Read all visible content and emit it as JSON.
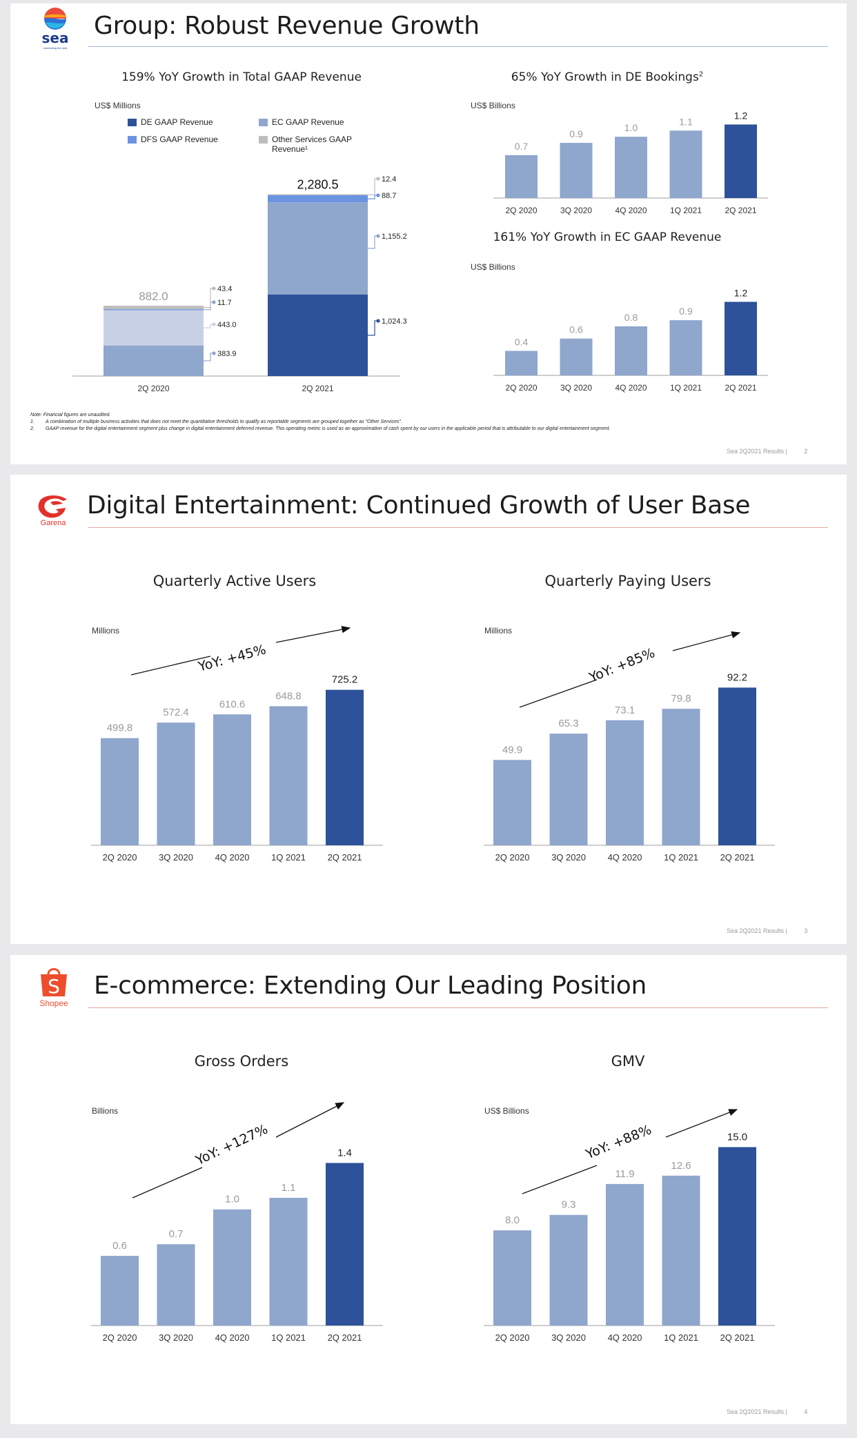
{
  "colors": {
    "dark": "#2d5299",
    "light": "#8fa6cd",
    "pale": "#c8d0e6",
    "gray": "#bdbdbd",
    "dfs": "#6a93e0",
    "rule1": "#9fb7d8",
    "rule23": "#e3a79f",
    "garena": "#e2312b",
    "shopee": "#ee4d2d",
    "seaNavy": "#1c3a8a"
  },
  "slides": [
    {
      "title": "Group: Robust Revenue Growth",
      "logo": {
        "icon": "sea-logo",
        "text": "sea",
        "tagline": "connecting the dots"
      },
      "page": {
        "source": "Sea 2Q2021 Results |",
        "number": "2"
      },
      "notes": [
        "Note: Financial figures are unaudited.",
        "1.",
        "A combination of multiple business activities that does not meet the quantitative thresholds to qualify as reportable segments are grouped together as \"Other Services\".",
        "2.",
        "GAAP revenue for the digital entertainment segment plus change in digital entertainment deferred revenue. This operating metric is used as an approximation of cash spent by our users in the applicable period that is attributable to our digital entertainment segment."
      ],
      "stack": {
        "subtitle": "159% YoY Growth in Total GAAP Revenue",
        "unit": "US$ Millions",
        "legend": [
          {
            "label": "DE GAAP Revenue",
            "key": "dark"
          },
          {
            "label": "EC GAAP Revenue",
            "key": "light"
          },
          {
            "label": "DFS GAAP Revenue",
            "key": "dfs"
          },
          {
            "label": "Other Services GAAP Revenue¹",
            "key": "gray"
          }
        ]
      },
      "bookings": {
        "subtitle": "65% YoY Growth in DE Bookings",
        "sup": "2",
        "unit": "US$ Billions"
      },
      "ecrev": {
        "subtitle": "161% YoY Growth in EC GAAP Revenue",
        "unit": "US$ Billions"
      }
    },
    {
      "title": "Digital Entertainment: Continued Growth of User Base",
      "logo": {
        "icon": "garena-logo",
        "text": "Garena"
      },
      "page": {
        "source": "Sea 2Q2021 Results |",
        "number": "3"
      },
      "left": {
        "subtitle": "Quarterly Active Users",
        "unit": "Millions",
        "yoy": "YoY: +45%"
      },
      "right": {
        "subtitle": "Quarterly Paying Users",
        "unit": "Millions",
        "yoy": "YoY: +85%"
      }
    },
    {
      "title": "E-commerce: Extending Our Leading Position",
      "logo": {
        "icon": "shopee-bag-logo",
        "text": "Shopee",
        "letter": "S"
      },
      "page": {
        "source": "Sea 2Q2021 Results |",
        "number": "4"
      },
      "left": {
        "subtitle": "Gross Orders",
        "unit": "Billions",
        "yoy": "YoY: +127%"
      },
      "right": {
        "subtitle": "GMV",
        "unit": "US$ Billions",
        "yoy": "YoY: +88%"
      }
    }
  ],
  "chart_data": [
    {
      "type": "bar",
      "stacked": true,
      "id": "total-gaap-revenue",
      "categories": [
        "2Q 2020",
        "2Q 2021"
      ],
      "totals": [
        "882.0",
        "2,280.5"
      ],
      "series": [
        {
          "name": "DE GAAP Revenue",
          "values": [
            383.9,
            1024.3
          ],
          "labels": [
            "383.9",
            "1,024.3"
          ]
        },
        {
          "name": "EC GAAP Revenue",
          "values": [
            443.0,
            1155.2
          ],
          "labels": [
            "443.0",
            "1,155.2"
          ]
        },
        {
          "name": "DFS GAAP Revenue",
          "values": [
            11.7,
            88.7
          ],
          "labels": [
            "11.7",
            "88.7"
          ]
        },
        {
          "name": "Other Services GAAP Revenue¹",
          "values": [
            43.4,
            12.4
          ],
          "labels": [
            "43.4",
            "12.4"
          ]
        }
      ],
      "ylim": [
        0,
        2450
      ]
    },
    {
      "type": "bar",
      "id": "de-bookings",
      "categories": [
        "2Q 2020",
        "3Q 2020",
        "4Q 2020",
        "1Q 2021",
        "2Q 2021"
      ],
      "values": [
        0.7,
        0.9,
        1.0,
        1.1,
        1.2
      ],
      "labels": [
        "0.7",
        "0.9",
        "1.0",
        "1.1",
        "1.2"
      ],
      "ylim": [
        0,
        1.25
      ]
    },
    {
      "type": "bar",
      "id": "ec-gaap-revenue",
      "categories": [
        "2Q 2020",
        "3Q 2020",
        "4Q 2020",
        "1Q 2021",
        "2Q 2021"
      ],
      "values": [
        0.4,
        0.6,
        0.8,
        0.9,
        1.2
      ],
      "labels": [
        "0.4",
        "0.6",
        "0.8",
        "0.9",
        "1.2"
      ],
      "ylim": [
        0,
        1.25
      ]
    },
    {
      "type": "bar",
      "id": "quarterly-active-users",
      "categories": [
        "2Q 2020",
        "3Q 2020",
        "4Q 2020",
        "1Q 2021",
        "2Q 2021"
      ],
      "values": [
        499.8,
        572.4,
        610.6,
        648.8,
        725.2
      ],
      "labels": [
        "499.8",
        "572.4",
        "610.6",
        "648.8",
        "725.2"
      ],
      "ylim": [
        0,
        750
      ]
    },
    {
      "type": "bar",
      "id": "quarterly-paying-users",
      "categories": [
        "2Q 2020",
        "3Q 2020",
        "4Q 2020",
        "1Q 2021",
        "2Q 2021"
      ],
      "values": [
        49.9,
        65.3,
        73.1,
        79.8,
        92.2
      ],
      "labels": [
        "49.9",
        "65.3",
        "73.1",
        "79.8",
        "92.2"
      ],
      "ylim": [
        0,
        94
      ]
    },
    {
      "type": "bar",
      "id": "gross-orders",
      "categories": [
        "2Q 2020",
        "3Q 2020",
        "4Q 2020",
        "1Q 2021",
        "2Q 2021"
      ],
      "values": [
        0.6,
        0.7,
        1.0,
        1.1,
        1.4
      ],
      "labels": [
        "0.6",
        "0.7",
        "1.0",
        "1.1",
        "1.4"
      ],
      "ylim": [
        0,
        1.45
      ]
    },
    {
      "type": "bar",
      "id": "gmv",
      "categories": [
        "2Q 2020",
        "3Q 2020",
        "4Q 2020",
        "1Q 2021",
        "2Q 2021"
      ],
      "values": [
        8.0,
        9.3,
        11.9,
        12.6,
        15.0
      ],
      "labels": [
        "8.0",
        "9.3",
        "11.9",
        "12.6",
        "15.0"
      ],
      "ylim": [
        0,
        15.2
      ]
    }
  ]
}
